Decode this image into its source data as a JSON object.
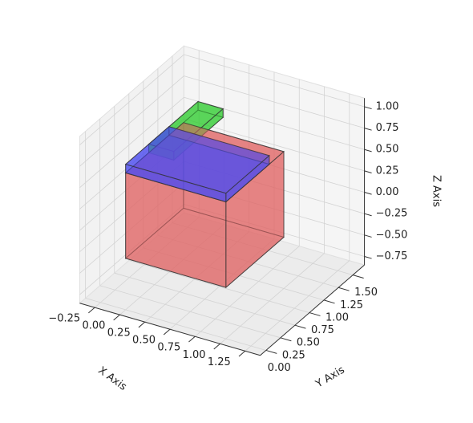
{
  "chart_data": {
    "type": "box3d",
    "xlabel": "X Axis",
    "ylabel": "Y Axis",
    "zlabel": "Z Axis",
    "xlim": [
      -0.4,
      1.4
    ],
    "ylim": [
      -0.1,
      1.7
    ],
    "zlim": [
      -0.85,
      1.1
    ],
    "xticks": [
      {
        "value": -0.25,
        "label": "−0.25"
      },
      {
        "value": 0,
        "label": "0.00"
      },
      {
        "value": 0.25,
        "label": "0.25"
      },
      {
        "value": 0.5,
        "label": "0.50"
      },
      {
        "value": 0.75,
        "label": "0.75"
      },
      {
        "value": 1,
        "label": "1.00"
      },
      {
        "value": 1.25,
        "label": "1.25"
      }
    ],
    "yticks": [
      {
        "value": 0,
        "label": "0.00"
      },
      {
        "value": 0.25,
        "label": "0.25"
      },
      {
        "value": 0.5,
        "label": "0.50"
      },
      {
        "value": 0.75,
        "label": "0.75"
      },
      {
        "value": 1,
        "label": "1.00"
      },
      {
        "value": 1.25,
        "label": "1.25"
      },
      {
        "value": 1.5,
        "label": "1.50"
      }
    ],
    "zticks": [
      {
        "value": -0.75,
        "label": "−0.75"
      },
      {
        "value": -0.5,
        "label": "−0.50"
      },
      {
        "value": -0.25,
        "label": "−0.25"
      },
      {
        "value": 0,
        "label": "0.00"
      },
      {
        "value": 0.25,
        "label": "0.25"
      },
      {
        "value": 0.5,
        "label": "0.50"
      },
      {
        "value": 0.75,
        "label": "0.75"
      },
      {
        "value": 1,
        "label": "1.00"
      }
    ],
    "grid": true,
    "boxes": [
      {
        "color": "#e06666",
        "x": [
          0,
          1
        ],
        "y": [
          0,
          1
        ],
        "z": [
          -0.25,
          0.75
        ]
      },
      {
        "color": "#4a4af0",
        "x": [
          0,
          1
        ],
        "y": [
          0,
          0.75
        ],
        "z": [
          0.75,
          0.85
        ]
      },
      {
        "color": "#33cc33",
        "x": [
          0,
          0.25
        ],
        "y": [
          0.4,
          1.25
        ],
        "z": [
          0.75,
          0.85
        ]
      }
    ]
  }
}
